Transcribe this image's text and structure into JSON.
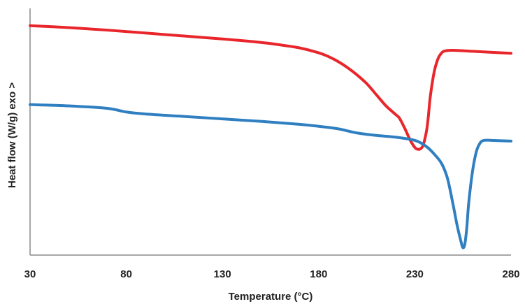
{
  "chart_data": {
    "type": "line",
    "xlabel": "Temperature (°C)",
    "ylabel": "Heat flow (W/g)  exo >",
    "xlim": [
      30,
      280
    ],
    "xticks": [
      30,
      80,
      130,
      180,
      230,
      280
    ],
    "ylim": [
      0,
      10
    ],
    "yticks_shown": false,
    "grid": false,
    "legend": "none",
    "series": [
      {
        "color": "#e8262c",
        "x": [
          30,
          50,
          70,
          90,
          110,
          130,
          150,
          160,
          170,
          180,
          185,
          190,
          195,
          200,
          205,
          210,
          215,
          220,
          222,
          225,
          228,
          231,
          234,
          236,
          237,
          238,
          240,
          242,
          244,
          246,
          250,
          260,
          270,
          280
        ],
        "y": [
          9.3,
          9.22,
          9.12,
          9.0,
          8.88,
          8.76,
          8.62,
          8.52,
          8.4,
          8.2,
          8.05,
          7.85,
          7.6,
          7.3,
          6.95,
          6.5,
          6.05,
          5.7,
          5.55,
          5.1,
          4.6,
          4.3,
          4.4,
          5.0,
          5.6,
          6.4,
          7.4,
          7.95,
          8.2,
          8.28,
          8.3,
          8.26,
          8.22,
          8.18
        ]
      },
      {
        "color": "#2f7fc1",
        "x": [
          30,
          50,
          70,
          80,
          90,
          110,
          130,
          150,
          170,
          180,
          190,
          200,
          210,
          220,
          230,
          236,
          240,
          244,
          247,
          250,
          252,
          254,
          255,
          256,
          257,
          258,
          260,
          262,
          264,
          266,
          270,
          280
        ],
        "y": [
          6.1,
          6.05,
          5.95,
          5.8,
          5.72,
          5.62,
          5.52,
          5.42,
          5.3,
          5.22,
          5.12,
          4.95,
          4.85,
          4.78,
          4.65,
          4.4,
          4.1,
          3.7,
          3.1,
          2.0,
          1.2,
          0.55,
          0.3,
          0.45,
          1.1,
          2.1,
          3.4,
          4.2,
          4.55,
          4.65,
          4.65,
          4.62
        ]
      }
    ]
  }
}
